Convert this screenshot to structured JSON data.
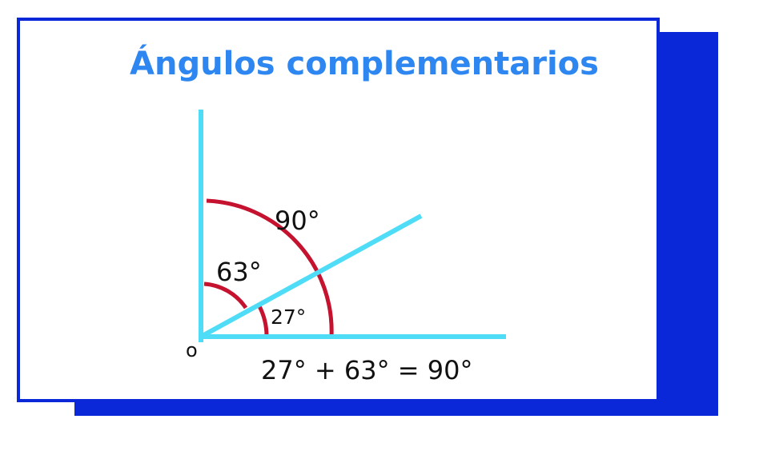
{
  "title": "Ángulos complementarios",
  "labels": {
    "angle_total": "90°",
    "angle_upper": "63°",
    "angle_lower": "27°",
    "origin": "o",
    "equation": "27° + 63° = 90°"
  },
  "colors": {
    "frame_blue": "#0a28d8",
    "title_blue": "#2e86f0",
    "ray_cyan": "#4fdcf7",
    "arc_red": "#c4122f",
    "text": "#111111"
  }
}
